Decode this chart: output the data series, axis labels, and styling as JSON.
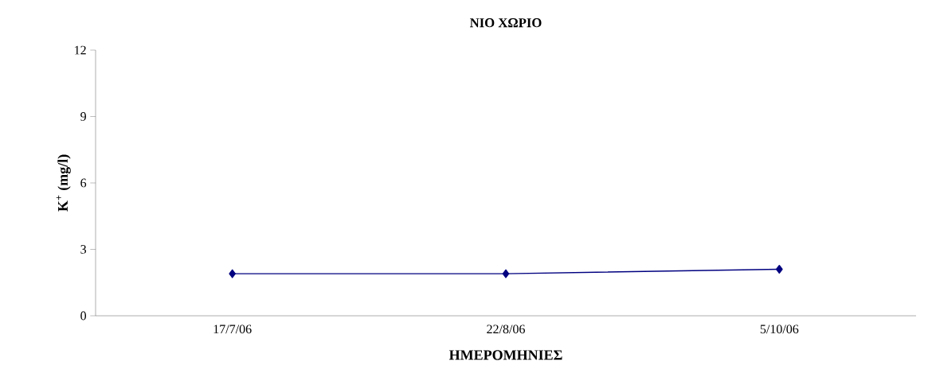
{
  "chart_data": {
    "type": "line",
    "title": "ΝΙΟ ΧΩΡΙΟ",
    "xlabel": "ΗΜΕΡΟΜΗΝΙΕΣ",
    "ylabel": "K$^{+}$ (mg/l)",
    "categories": [
      "17/7/06",
      "22/8/06",
      "5/10/06"
    ],
    "series": [
      {
        "color": "#000080",
        "values": [
          1.9,
          1.9,
          2.1
        ]
      }
    ],
    "ylim": [
      0,
      12
    ],
    "yticks": [
      0,
      3,
      6,
      9,
      12
    ],
    "marker": "diamond",
    "line_style": "solid"
  }
}
